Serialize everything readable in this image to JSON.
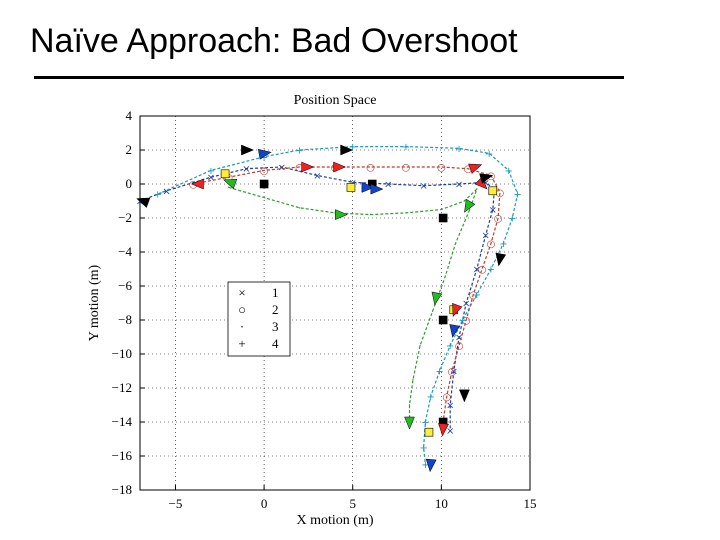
{
  "slide": {
    "title": "Naïve Approach: Bad Overshoot"
  },
  "chart_data": {
    "type": "line",
    "title": "Position Space",
    "xlabel": "X motion (m)",
    "ylabel": "Y motion (m)",
    "xlim": [
      -7,
      15
    ],
    "ylim": [
      -18,
      4
    ],
    "x_ticks": [
      -5,
      0,
      5,
      10,
      15
    ],
    "y_ticks": [
      4,
      2,
      0,
      -2,
      -4,
      -6,
      -8,
      -10,
      -12,
      -14,
      -16,
      -18
    ],
    "x_tick_labels": [
      "−5",
      "0",
      "5",
      "10",
      "15"
    ],
    "y_tick_labels": [
      "4",
      "2",
      "0",
      "−2",
      "−4",
      "−6",
      "−8",
      "−10",
      "−12",
      "−14",
      "−16",
      "−18"
    ],
    "grid": true,
    "legend_position": "left-middle",
    "series": [
      {
        "name": "1",
        "marker": "×",
        "color": "#1f3fa0",
        "points": [
          [
            -7,
            -1
          ],
          [
            -5.5,
            -0.4
          ],
          [
            -3,
            0.4
          ],
          [
            -1,
            0.9
          ],
          [
            1,
            1
          ],
          [
            3,
            0.5
          ],
          [
            5,
            0.1
          ],
          [
            7,
            0
          ],
          [
            9,
            -0.1
          ],
          [
            11,
            0
          ],
          [
            12.5,
            0.1
          ],
          [
            13,
            -0.3
          ],
          [
            12.9,
            -1.5
          ],
          [
            12.5,
            -3
          ],
          [
            12,
            -5
          ],
          [
            11.4,
            -7
          ],
          [
            11,
            -9
          ],
          [
            10.7,
            -11
          ],
          [
            10.5,
            -13
          ],
          [
            10.5,
            -14.5
          ]
        ]
      },
      {
        "name": "2",
        "marker": "○",
        "color": "#c0392b",
        "points": [
          [
            -4,
            0
          ],
          [
            -2,
            0.4
          ],
          [
            0,
            0.8
          ],
          [
            2,
            1
          ],
          [
            4,
            1
          ],
          [
            6,
            1
          ],
          [
            8,
            1
          ],
          [
            10,
            1
          ],
          [
            11.5,
            0.9
          ],
          [
            12.8,
            0.5
          ],
          [
            13.3,
            -0.5
          ],
          [
            13.2,
            -2
          ],
          [
            12.8,
            -3.5
          ],
          [
            12.3,
            -5
          ],
          [
            11.8,
            -6.5
          ],
          [
            11.4,
            -8
          ],
          [
            11,
            -9.5
          ],
          [
            10.6,
            -11
          ],
          [
            10.3,
            -12.5
          ],
          [
            10.1,
            -14
          ]
        ]
      },
      {
        "name": "3",
        "marker": "·",
        "color": "#2ca02c",
        "points": [
          [
            -2,
            -0.2
          ],
          [
            0,
            -0.8
          ],
          [
            2,
            -1.4
          ],
          [
            4,
            -1.7
          ],
          [
            6,
            -1.8
          ],
          [
            8,
            -1.7
          ],
          [
            10,
            -1.5
          ],
          [
            11.3,
            -1
          ],
          [
            12,
            -0.3
          ],
          [
            11.6,
            -1.5
          ],
          [
            10.8,
            -3.5
          ],
          [
            10.2,
            -5.5
          ],
          [
            9.5,
            -7.5
          ],
          [
            8.8,
            -9.5
          ],
          [
            8.4,
            -11.5
          ],
          [
            8.2,
            -13
          ],
          [
            8.2,
            -14.3
          ]
        ]
      },
      {
        "name": "4",
        "marker": "+",
        "color": "#1a9ac0",
        "points": [
          [
            -6,
            -0.6
          ],
          [
            -3,
            0.8
          ],
          [
            0,
            1.6
          ],
          [
            2,
            2
          ],
          [
            5,
            2.2
          ],
          [
            8,
            2.2
          ],
          [
            11,
            2.1
          ],
          [
            12.7,
            1.8
          ],
          [
            13.8,
            0.8
          ],
          [
            14.3,
            -0.6
          ],
          [
            14,
            -2
          ],
          [
            13.5,
            -3.5
          ],
          [
            12.8,
            -5
          ],
          [
            12,
            -6.5
          ],
          [
            11.2,
            -8
          ],
          [
            10.5,
            -9.5
          ],
          [
            9.9,
            -11
          ],
          [
            9.4,
            -12.5
          ],
          [
            9.1,
            -14
          ],
          [
            9,
            -15.5
          ],
          [
            9.1,
            -16.5
          ]
        ]
      }
    ],
    "arrow_markers": [
      {
        "x": -6.8,
        "y": -1.0,
        "color": "#000000",
        "angle": 200
      },
      {
        "x": -1.0,
        "y": 2.0,
        "color": "#000000",
        "angle": 0
      },
      {
        "x": 0.0,
        "y": 1.8,
        "color": "#1144cc",
        "angle": -10
      },
      {
        "x": -3.7,
        "y": 0.0,
        "color": "#ee2222",
        "angle": 180
      },
      {
        "x": -1.9,
        "y": 0.1,
        "color": "#22bb22",
        "angle": 200
      },
      {
        "x": 2.4,
        "y": 1.0,
        "color": "#ee2222",
        "angle": 0
      },
      {
        "x": 4.2,
        "y": 1.0,
        "color": "#ee2222",
        "angle": 0
      },
      {
        "x": 4.6,
        "y": 2.0,
        "color": "#000000",
        "angle": 0
      },
      {
        "x": 5.8,
        "y": -0.2,
        "color": "#1144cc",
        "angle": 0
      },
      {
        "x": 6.3,
        "y": -0.3,
        "color": "#1144cc",
        "angle": 0
      },
      {
        "x": 4.3,
        "y": -1.8,
        "color": "#22bb22",
        "angle": 0
      },
      {
        "x": 11.9,
        "y": 1.0,
        "color": "#ee2222",
        "angle": -20
      },
      {
        "x": 12.3,
        "y": 0.0,
        "color": "#ee2222",
        "angle": 45
      },
      {
        "x": 12.5,
        "y": 0.4,
        "color": "#000000",
        "angle": -15
      },
      {
        "x": 11.5,
        "y": -1.3,
        "color": "#22bb22",
        "angle": 120
      },
      {
        "x": 9.7,
        "y": -6.7,
        "color": "#22bb22",
        "angle": 100
      },
      {
        "x": 10.8,
        "y": -7.4,
        "color": "#ee2222",
        "angle": 110
      },
      {
        "x": 10.7,
        "y": -8.6,
        "color": "#1144cc",
        "angle": 100
      },
      {
        "x": 11.3,
        "y": -12.4,
        "color": "#000000",
        "angle": 90
      },
      {
        "x": 8.2,
        "y": -14.0,
        "color": "#22bb22",
        "angle": 90
      },
      {
        "x": 10.1,
        "y": -14.4,
        "color": "#ee2222",
        "angle": 95
      },
      {
        "x": 9.4,
        "y": -16.5,
        "color": "#1144cc",
        "angle": 95
      },
      {
        "x": 13.3,
        "y": -4.4,
        "color": "#000000",
        "angle": 100
      }
    ],
    "square_markers": [
      {
        "x": -2.2,
        "y": 0.6,
        "color": "#ffee33"
      },
      {
        "x": 0.0,
        "y": 0.0,
        "color": "#000000"
      },
      {
        "x": 4.9,
        "y": -0.2,
        "color": "#ffee33"
      },
      {
        "x": 6.1,
        "y": 0.0,
        "color": "#000000"
      },
      {
        "x": 12.9,
        "y": -0.4,
        "color": "#ffee33"
      },
      {
        "x": 10.1,
        "y": -2.0,
        "color": "#000000"
      },
      {
        "x": 10.7,
        "y": -7.4,
        "color": "#ffee33"
      },
      {
        "x": 10.1,
        "y": -8.0,
        "color": "#000000"
      },
      {
        "x": 9.3,
        "y": -14.6,
        "color": "#ffee33"
      },
      {
        "x": 10.1,
        "y": -14.0,
        "color": "#000000"
      }
    ],
    "legend": [
      {
        "symbol": "×",
        "label": "1"
      },
      {
        "symbol": "○",
        "label": "2"
      },
      {
        "symbol": "·",
        "label": "3"
      },
      {
        "symbol": "+",
        "label": "4"
      }
    ]
  }
}
